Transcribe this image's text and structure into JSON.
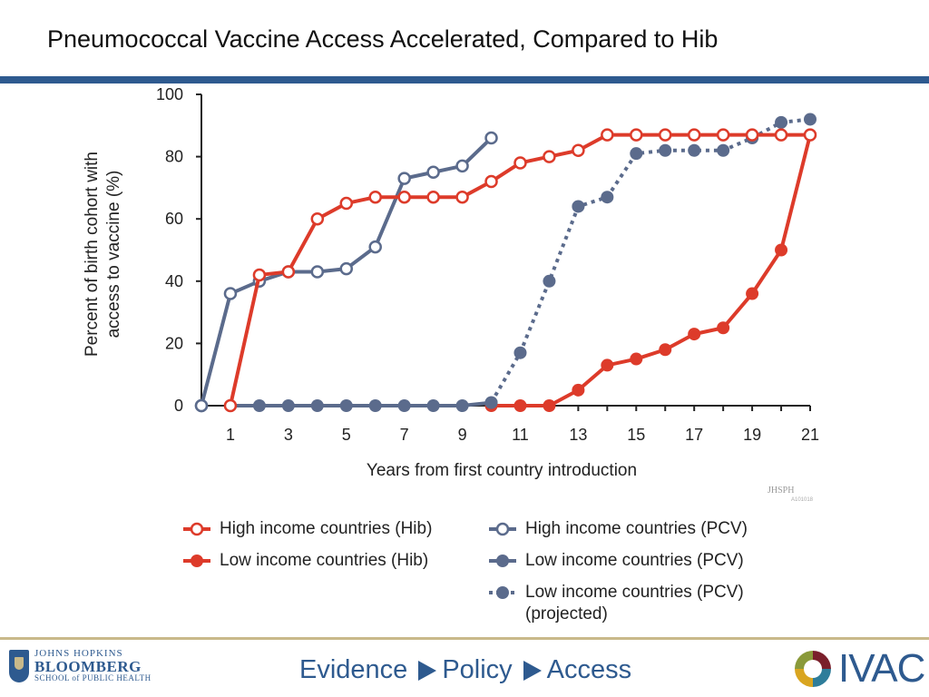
{
  "slide": {
    "title": "Pneumococcal Vaccine Access Accelerated, Compared to Hib",
    "watermark": "JHSPH",
    "watermark_code": "A101018"
  },
  "footer": {
    "jh_line1": "JOHNS HOPKINS",
    "jh_line2": "BLOOMBERG",
    "jh_line3": "SCHOOL of PUBLIC HEALTH",
    "tagline_1": "Evidence",
    "tagline_2": "Policy",
    "tagline_3": "Access",
    "ivac": "IVAC"
  },
  "colors": {
    "hib": "#dd3b2a",
    "pcv": "#5b6b8c",
    "brand_blue": "#2e5a8f",
    "gold": "#c9b98a"
  },
  "chart_data": {
    "type": "line",
    "xlabel": "Years from first country introduction",
    "ylabel_line1": "Percent of birth cohort with",
    "ylabel_line2": "access to vaccine (%)",
    "xlim": [
      0,
      21
    ],
    "ylim": [
      0,
      100
    ],
    "xticks": [
      1,
      3,
      5,
      7,
      9,
      11,
      13,
      15,
      17,
      19,
      21
    ],
    "yticks": [
      0,
      20,
      40,
      60,
      80,
      100
    ],
    "series": [
      {
        "name": "High income countries (Hib)",
        "color": "#dd3b2a",
        "marker": "open",
        "dashed": false,
        "x": [
          1,
          2,
          3,
          4,
          5,
          6,
          7,
          8,
          9,
          10,
          11,
          12,
          13,
          14,
          15,
          16,
          17,
          18,
          19,
          20,
          21
        ],
        "y": [
          0,
          42,
          43,
          60,
          65,
          67,
          67,
          67,
          67,
          72,
          78,
          80,
          82,
          87,
          87,
          87,
          87,
          87,
          87,
          87,
          87
        ]
      },
      {
        "name": "Low income countries (Hib)",
        "color": "#dd3b2a",
        "marker": "filled",
        "dashed": false,
        "x": [
          10,
          11,
          12,
          13,
          14,
          15,
          16,
          17,
          18,
          19,
          20,
          21
        ],
        "y": [
          0,
          0,
          0,
          5,
          13,
          15,
          18,
          23,
          25,
          36,
          50,
          87
        ]
      },
      {
        "name": "High income countries (PCV)",
        "color": "#5b6b8c",
        "marker": "open",
        "dashed": false,
        "x": [
          0,
          1,
          2,
          3,
          4,
          5,
          6,
          7,
          8,
          9,
          10
        ],
        "y": [
          0,
          36,
          40,
          43,
          43,
          44,
          51,
          73,
          75,
          77,
          86
        ]
      },
      {
        "name": "Low income countries (PCV)",
        "color": "#5b6b8c",
        "marker": "filled",
        "dashed": false,
        "x": [
          1,
          2,
          3,
          4,
          5,
          6,
          7,
          8,
          9,
          10
        ],
        "y": [
          0,
          0,
          0,
          0,
          0,
          0,
          0,
          0,
          0,
          1
        ]
      },
      {
        "name": "Low income countries (PCV) (projected)",
        "legend_line1": "Low income countries (PCV)",
        "legend_line2": "(projected)",
        "color": "#5b6b8c",
        "marker": "filled",
        "dashed": true,
        "x": [
          10,
          11,
          12,
          13,
          14,
          15,
          16,
          17,
          18,
          19,
          20,
          21
        ],
        "y": [
          1,
          17,
          40,
          64,
          67,
          81,
          82,
          82,
          82,
          86,
          91,
          92
        ]
      }
    ],
    "legend_placement": "bottom"
  }
}
